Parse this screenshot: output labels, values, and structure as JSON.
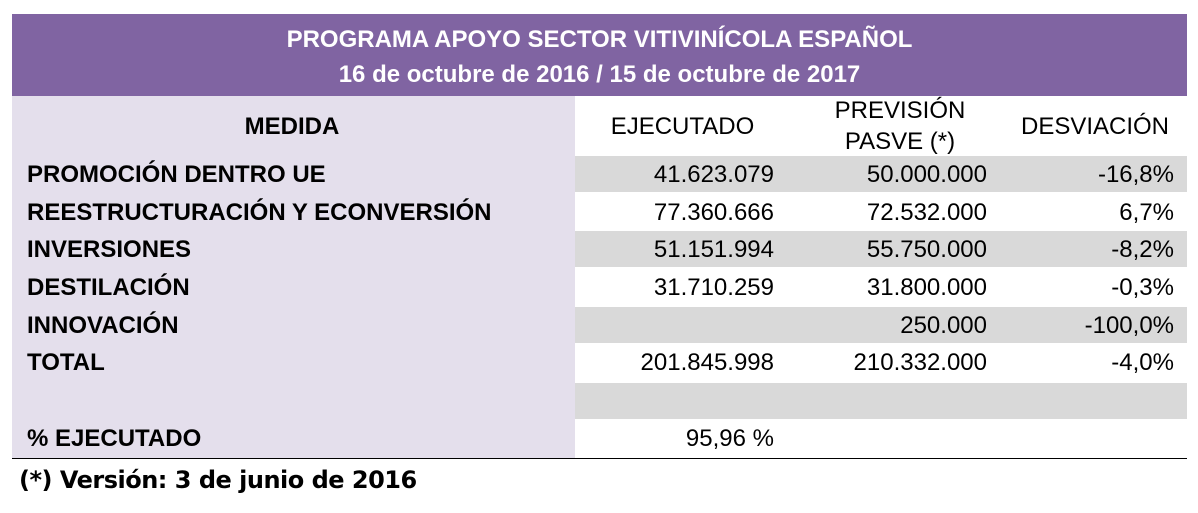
{
  "header": {
    "title": "PROGRAMA APOYO SECTOR VITIVINÍCOLA ESPAÑOL",
    "period": "16 de octubre de 2016 / 15 de octubre de 2017"
  },
  "columns": {
    "medida": "MEDIDA",
    "ejecutado": "EJECUTADO",
    "prevision_line1": "PREVISIÓN",
    "prevision_line2": "PASVE (*)",
    "desviacion": "DESVIACIÓN"
  },
  "rows": [
    {
      "medida": "PROMOCIÓN DENTRO UE",
      "ejecutado": "41.623.079",
      "prevision": "50.000.000",
      "desviacion": "-16,8%"
    },
    {
      "medida": "REESTRUCTURACIÓN Y ECONVERSIÓN",
      "ejecutado": "77.360.666",
      "prevision": "72.532.000",
      "desviacion": "6,7%"
    },
    {
      "medida": "INVERSIONES",
      "ejecutado": "51.151.994",
      "prevision": "55.750.000",
      "desviacion": "-8,2%"
    },
    {
      "medida": "DESTILACIÓN",
      "ejecutado": "31.710.259",
      "prevision": "31.800.000",
      "desviacion": "-0,3%"
    },
    {
      "medida": "INNOVACIÓN",
      "ejecutado": "",
      "prevision": "250.000",
      "desviacion": "-100,0%"
    },
    {
      "medida": "TOTAL",
      "ejecutado": "201.845.998",
      "prevision": "210.332.000",
      "desviacion": "-4,0%"
    }
  ],
  "percent_row": {
    "label": "% EJECUTADO",
    "value": "95,96 %"
  },
  "footnote": "(*) Versión: 3 de junio de 2016",
  "colors": {
    "header_bg": "#8064a2",
    "label_bg": "#e4dfec",
    "band_bg": "#d9d9d9"
  }
}
